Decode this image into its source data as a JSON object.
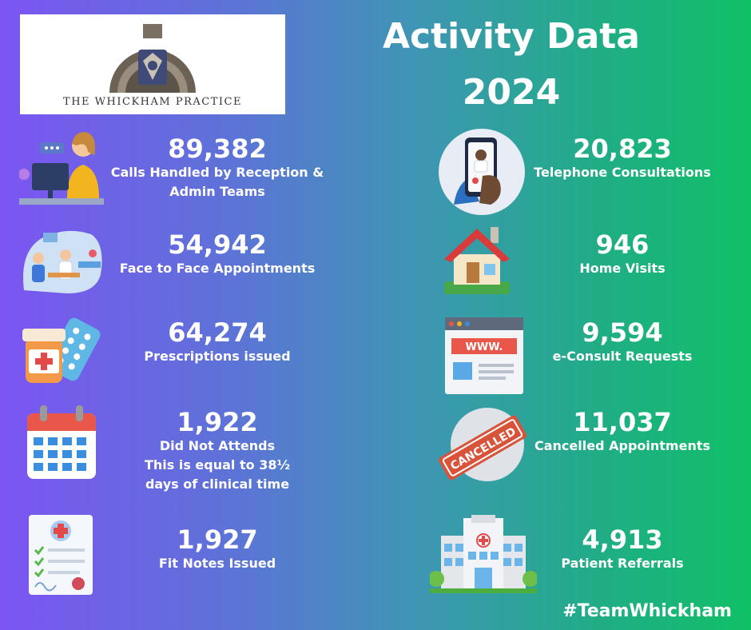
{
  "logo": {
    "text": "THE WHICKHAM PRACTICE"
  },
  "title": {
    "line1": "Activity Data",
    "line2": "2024"
  },
  "stats": [
    {
      "value": "89,382",
      "label_lines": [
        "Calls Handled by Reception &",
        "Admin Teams"
      ],
      "icon": "receptionist-headset-icon"
    },
    {
      "value": "20,823",
      "label_lines": [
        "Telephone Consultations"
      ],
      "icon": "phone-doctor-icon"
    },
    {
      "value": "54,942",
      "label_lines": [
        "Face to Face Appointments"
      ],
      "icon": "doctor-consultation-icon"
    },
    {
      "value": "946",
      "label_lines": [
        "Home Visits"
      ],
      "icon": "house-icon"
    },
    {
      "value": "64,274",
      "label_lines": [
        "Prescriptions issued"
      ],
      "icon": "medicine-pills-icon"
    },
    {
      "value": "9,594",
      "label_lines": [
        "e-Consult Requests"
      ],
      "icon": "browser-window-icon"
    },
    {
      "value": "1,922",
      "label_lines": [
        "Did Not Attends",
        "This is equal to 38½",
        "days of clinical time"
      ],
      "icon": "calendar-icon"
    },
    {
      "value": "11,037",
      "label_lines": [
        "Cancelled Appointments"
      ],
      "icon": "cancelled-stamp-icon"
    },
    {
      "value": "1,927",
      "label_lines": [
        "Fit Notes Issued"
      ],
      "icon": "medical-form-icon"
    },
    {
      "value": "4,913",
      "label_lines": [
        "Patient Referrals"
      ],
      "icon": "hospital-icon"
    }
  ],
  "stamp_text": "CANCELLED",
  "browser_text": "WWW.",
  "hashtag": "#TeamWhickham",
  "colors": {
    "gradient_start": "#7c55f2",
    "gradient_end": "#10c066",
    "text": "#ffffff",
    "stamp_red": "#d9533b"
  }
}
